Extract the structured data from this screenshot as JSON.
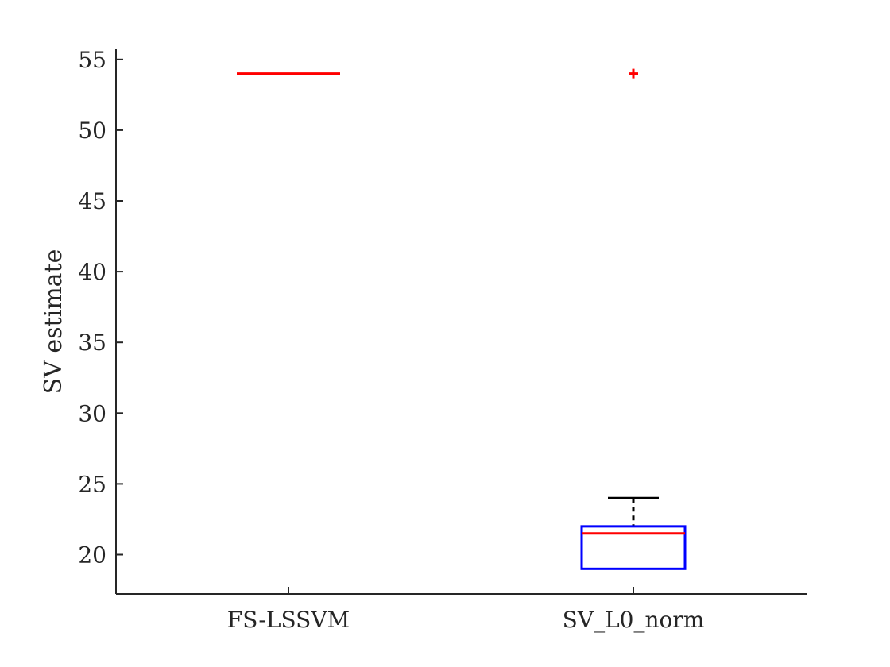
{
  "chart_data": {
    "type": "box",
    "title": "",
    "xlabel": "",
    "ylabel": "SV estimate",
    "ylim": [
      17.3,
      56
    ],
    "yticks": [
      20,
      25,
      30,
      35,
      40,
      45,
      50,
      55
    ],
    "ytick_labels": [
      "20",
      "25",
      "30",
      "35",
      "40",
      "45",
      "50",
      "55"
    ],
    "categories": [
      "FS-LSSVM",
      "SV_L0_norm"
    ],
    "grid": false,
    "legend": "none",
    "boxes": [
      {
        "category": "FS-LSSVM",
        "q1": 54,
        "median": 54,
        "q3": 54,
        "whisker_low": 54,
        "whisker_high": 54,
        "outliers": []
      },
      {
        "category": "SV_L0_norm",
        "q1": 19,
        "median": 21.5,
        "q3": 22,
        "whisker_low": 19,
        "whisker_high": 24,
        "outliers": [
          54
        ]
      }
    ],
    "colors": {
      "box": "#0000ff",
      "median": "#ff0000",
      "whisker": "#000000",
      "outlier": "#ff0000",
      "axis": "#262626"
    }
  }
}
